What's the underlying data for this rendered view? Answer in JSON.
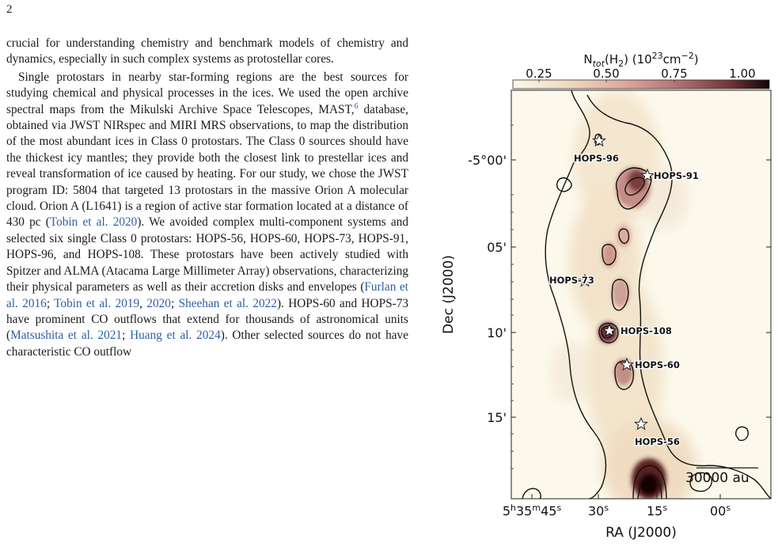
{
  "page": {
    "number": "2"
  },
  "text": {
    "p1": {
      "t1": "crucial for understanding chemistry and benchmark models of chemistry and dynamics, especially in such complex systems as protostellar cores."
    },
    "p2": {
      "t1": "Single protostars in nearby star-forming regions are the best sources for studying chemical and physical processes in the ices. We used the open archive spectral maps from the Mikulski Archive Space Telescopes, MAST,",
      "fn": "6",
      "t2": " database, obtained via JWST NIRspec and MIRI MRS observations, to map the distribution of the most abundant ices in Class 0 protostars. The Class 0 sources should have the thickest icy mantles; they provide both the closest link to prestellar ices and reveal transformation of ice caused by heating.  For our study, we chose the JWST program ID: 5804 that targeted 13 protostars in the massive Orion A molecular cloud. Orion A (L1641) is a region of active star formation located at a distance of 430 pc (",
      "c1": "Tobin et al. 2020",
      "t3": ").  We avoided complex multi-component systems and selected six single Class 0 protostars:  HOPS-56, HOPS-60, HOPS-73, HOPS-91, HOPS-96, and HOPS-108. These protostars have been actively studied with Spitzer and ALMA (Atacama Large Millimeter Array) observations, characterizing their physical parameters as well as their accretion disks and envelopes (",
      "c2": "Furlan et al. 2016",
      "t4": "; ",
      "c3": "Tobin et al. 2019",
      "t5": ", ",
      "c4": "2020",
      "t6": "; ",
      "c5": "Sheehan et al. 2022",
      "t7": ").  HOPS-60 and HOPS-73 have prominent CO outflows that extend for thousands of astronomical units (",
      "c6": "Matsushita et al. 2021",
      "t8": "; ",
      "c7": "Huang et al. 2024",
      "t9": "). Other selected sources do not have characteristic CO outflow"
    }
  },
  "figure": {
    "colorbar": {
      "label_main": "N",
      "label_sub": "tot",
      "label_mid": "(H",
      "label_sub2": "2",
      "label_mid2": ") (10",
      "label_sup": "23",
      "label_mid3": "cm",
      "label_sup2": "−2",
      "label_end": ")",
      "ticks": [
        "0.25",
        "0.50",
        "0.75",
        "1.00"
      ],
      "colors": [
        "#fbf7e6",
        "#f0dcc4",
        "#d9a69b",
        "#b07070",
        "#6e3436",
        "#120404"
      ]
    },
    "y_axis": {
      "label": "Dec (J2000)",
      "ticks": [
        "-5°00'",
        "05'",
        "10'",
        "15'"
      ]
    },
    "x_axis": {
      "label": "RA (J2000)",
      "ticks": [
        {
          "a": "5",
          "b": "h",
          "c": "35",
          "d": "m",
          "e": "45",
          "f": "s"
        },
        {
          "a": "30",
          "b": "s"
        },
        {
          "a": "15",
          "b": "s"
        },
        {
          "a": "00",
          "b": "s"
        }
      ]
    },
    "sources": [
      "HOPS-96",
      "HOPS-91",
      "HOPS-73",
      "HOPS-108",
      "HOPS-60",
      "HOPS-56"
    ],
    "scalebar": "30000 au"
  }
}
